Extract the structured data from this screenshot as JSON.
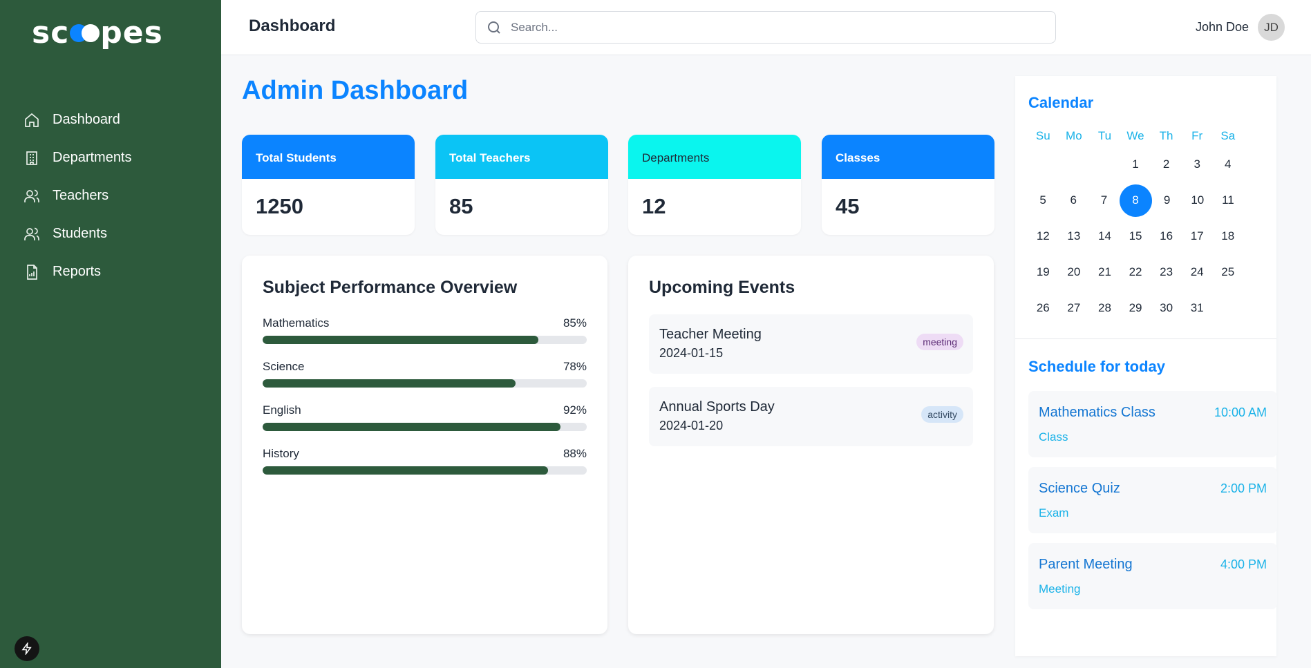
{
  "sidebar": {
    "logo": "scopes",
    "items": [
      {
        "label": "Dashboard",
        "icon": "home-icon"
      },
      {
        "label": "Departments",
        "icon": "building-icon"
      },
      {
        "label": "Teachers",
        "icon": "users-icon"
      },
      {
        "label": "Students",
        "icon": "users-icon"
      },
      {
        "label": "Reports",
        "icon": "report-icon"
      }
    ]
  },
  "header": {
    "title": "Dashboard",
    "search_placeholder": "Search...",
    "user_name": "John Doe",
    "user_initials": "JD"
  },
  "main": {
    "title": "Admin Dashboard",
    "stats": [
      {
        "label": "Total Students",
        "value": "1250",
        "color": "#0b84ff"
      },
      {
        "label": "Total Teachers",
        "value": "85",
        "color": "#0bc4f5"
      },
      {
        "label": "Departments",
        "value": "12",
        "color": "#0af5ee"
      },
      {
        "label": "Classes",
        "value": "45",
        "color": "#0b84ff"
      }
    ],
    "performance": {
      "title": "Subject Performance Overview",
      "subjects": [
        {
          "name": "Mathematics",
          "percent_label": "85%",
          "value": 85
        },
        {
          "name": "Science",
          "percent_label": "78%",
          "value": 78
        },
        {
          "name": "English",
          "percent_label": "92%",
          "value": 92
        },
        {
          "name": "History",
          "percent_label": "88%",
          "value": 88
        }
      ]
    },
    "events": {
      "title": "Upcoming Events",
      "items": [
        {
          "title": "Teacher Meeting",
          "date": "2024-01-15",
          "tag": "meeting"
        },
        {
          "title": "Annual Sports Day",
          "date": "2024-01-20",
          "tag": "activity"
        }
      ]
    }
  },
  "calendar": {
    "title": "Calendar",
    "weekdays": [
      "Su",
      "Mo",
      "Tu",
      "We",
      "Th",
      "Fr",
      "Sa"
    ],
    "weeks": [
      [
        "",
        "",
        "",
        "1",
        "2",
        "3",
        "4"
      ],
      [
        "5",
        "6",
        "7",
        "8",
        "9",
        "10",
        "11"
      ],
      [
        "12",
        "13",
        "14",
        "15",
        "16",
        "17",
        "18"
      ],
      [
        "19",
        "20",
        "21",
        "22",
        "23",
        "24",
        "25"
      ],
      [
        "26",
        "27",
        "28",
        "29",
        "30",
        "31",
        ""
      ]
    ],
    "selected_day": "8"
  },
  "schedule": {
    "title": "Schedule for today",
    "items": [
      {
        "name": "Mathematics Class",
        "time": "10:00 AM",
        "type": "Class"
      },
      {
        "name": "Science Quiz",
        "time": "2:00 PM",
        "type": "Exam"
      },
      {
        "name": "Parent Meeting",
        "time": "4:00 PM",
        "type": "Meeting"
      }
    ]
  },
  "colors": {
    "sidebar_bg": "#2d5a3c",
    "accent": "#0b84ff",
    "progress": "#2d5a3c"
  }
}
